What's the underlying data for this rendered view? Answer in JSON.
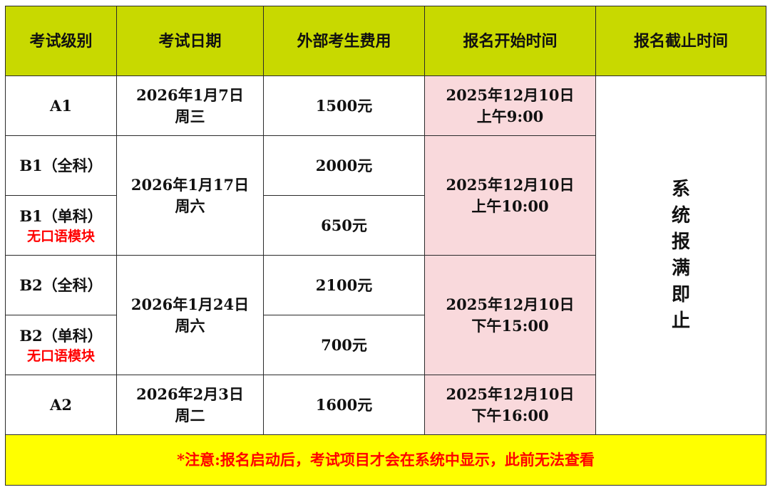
{
  "headers": [
    "考试级别",
    "考试日期",
    "外部考生费用",
    "报名开始时间",
    "报名截止时间"
  ],
  "rows": [
    {
      "level": "A1",
      "date": "2026年1月7日",
      "weekday": "周三",
      "fee": "1500元",
      "start_date": "2025年12月10日",
      "start_time": "上午9:00"
    },
    {
      "level": "B1（全科）",
      "date": "2026年1月17日",
      "weekday": "周六",
      "fee": "2000元",
      "start_date": "2025年12月10日",
      "start_time": "上午10:00"
    },
    {
      "level": "B1（单科）",
      "note": "无口语模块",
      "fee": "650元"
    },
    {
      "level": "B2（全科）",
      "date": "2026年1月24日",
      "weekday": "周六",
      "fee": "2100元",
      "start_date": "2025年12月10日",
      "start_time": "下午15:00"
    },
    {
      "level": "B2（单科）",
      "note": "无口语模块",
      "fee": "700元"
    },
    {
      "level": "A2",
      "date": "2026年2月3日",
      "weekday": "周二",
      "fee": "1600元",
      "start_date": "2025年12月10日",
      "start_time": "下午16:00"
    }
  ],
  "deadline_chars": [
    "系",
    "统",
    "报",
    "满",
    "即",
    "止"
  ],
  "footer_note": "*注意:报名启动后，考试项目才会在系统中显示，此前无法查看",
  "colors": {
    "header": "#c8d900",
    "start_cell": "#f9d9dc",
    "footer_bg": "#ffff00",
    "note_text": "#ff0000"
  }
}
